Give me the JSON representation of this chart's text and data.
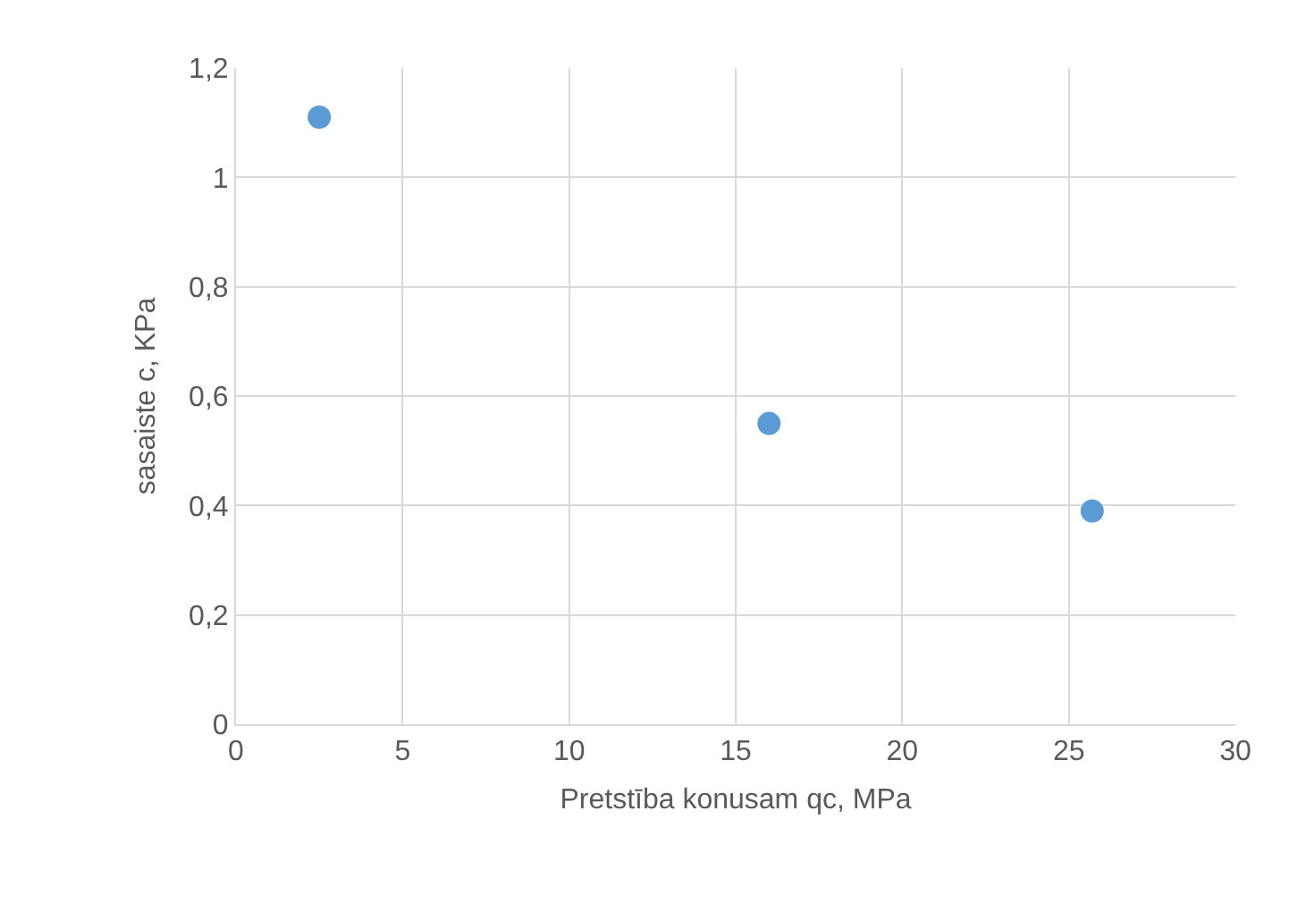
{
  "chart_data": {
    "type": "scatter",
    "xlabel": "Pretstība konusam qc, MPa",
    "ylabel": "sasaiste c, KPa",
    "x": [
      2.5,
      16.0,
      25.7
    ],
    "series": [
      {
        "color": "#5b9bd5",
        "values": [
          1.11,
          0.55,
          0.39
        ]
      }
    ],
    "xlim": [
      0,
      30
    ],
    "xticks": [
      0,
      5,
      10,
      15,
      20,
      25,
      30
    ],
    "ylim": [
      0,
      1.2
    ],
    "yticks": [
      0,
      {
        "value": 0.2,
        "label": "0,2"
      },
      {
        "value": 0.4,
        "label": "0,4"
      },
      {
        "value": 0.6,
        "label": "0,6"
      },
      {
        "value": 0.8,
        "label": "0,8"
      },
      1,
      {
        "value": 1.2,
        "label": "1,2"
      }
    ],
    "grid": true,
    "marker": "circle"
  }
}
